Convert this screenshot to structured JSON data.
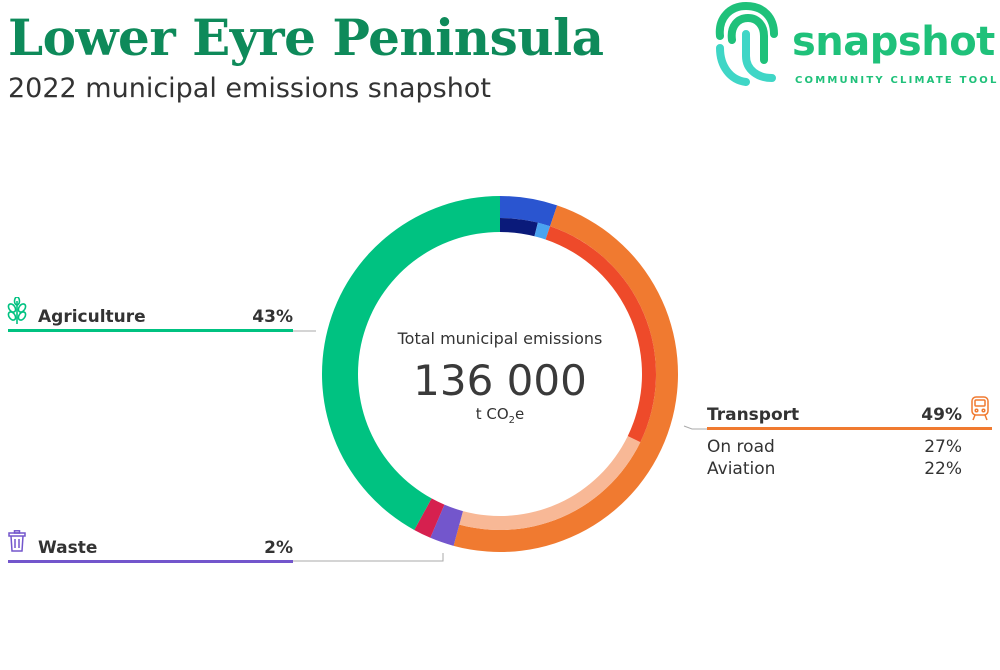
{
  "header": {
    "title": "Lower Eyre Peninsula",
    "subtitle": "2022 municipal emissions snapshot"
  },
  "logo": {
    "word": "snapshot",
    "tagline": "COMMUNITY CLIMATE TOOL",
    "color": "#1fc17a",
    "accent_color": "#3fd6c6"
  },
  "center": {
    "label": "Total municipal emissions",
    "value": "136 000",
    "unit_prefix": "t CO",
    "unit_sub": "2",
    "unit_suffix": "e"
  },
  "legend": {
    "agriculture": {
      "name": "Agriculture",
      "pct": "43%",
      "icon": "wheat-icon",
      "color": "#00c281"
    },
    "waste": {
      "name": "Waste",
      "pct": "2%",
      "icon": "trash-bin-icon",
      "color": "#7356cc"
    },
    "transport": {
      "name": "Transport",
      "pct": "49%",
      "icon": "train-icon",
      "color": "#f07a30",
      "sub": [
        {
          "name": "On road",
          "pct": "27%"
        },
        {
          "name": "Aviation",
          "pct": "22%"
        }
      ]
    }
  },
  "chart_data": {
    "type": "donut",
    "total": 136000,
    "unit": "t CO2e",
    "categories": [
      {
        "name": "",
        "value": 5.2,
        "color": "#2a55d0",
        "inner": [
          {
            "value": 3.9,
            "color": "#0a1a7a"
          },
          {
            "value": 1.3,
            "color": "#4aa3f0"
          }
        ]
      },
      {
        "name": "Transport",
        "value": 49,
        "color": "#f07a30",
        "inner": [
          {
            "value": 27,
            "color": "#ee4a2a"
          },
          {
            "value": 22,
            "color": "#f8b896"
          }
        ]
      },
      {
        "name": "Waste",
        "value": 2.2,
        "color": "#7356cc",
        "inner": []
      },
      {
        "name": "",
        "value": 1.6,
        "color": "#d6204f",
        "inner": []
      },
      {
        "name": "Agriculture",
        "value": 42,
        "color": "#00c281",
        "inner": []
      }
    ]
  }
}
